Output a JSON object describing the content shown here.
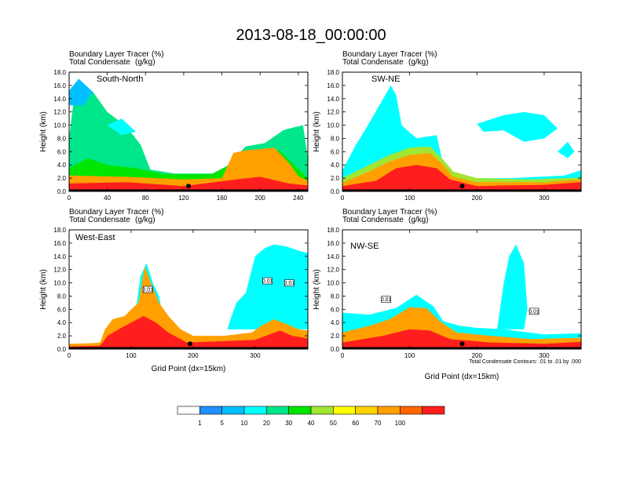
{
  "figure": {
    "title": "2013-08-18_00:00:00",
    "footnote": "Total Condensate Contours: .01 to .01 by .000"
  },
  "colorbar": {
    "colors": [
      "#ffffff",
      "#1e90ff",
      "#00bfff",
      "#00ffff",
      "#00e68a",
      "#00e600",
      "#a0e632",
      "#ffff00",
      "#ffd200",
      "#ffa000",
      "#ff6400",
      "#ff1e1e"
    ],
    "labels": [
      "1",
      "5",
      "10",
      "20",
      "30",
      "40",
      "50",
      "60",
      "70",
      "100"
    ]
  },
  "chart_data": [
    {
      "type": "filled-contour",
      "panel_label": "South-North",
      "title1": "Boundary Layer Tracer",
      "unit1": "(%)",
      "title2": "Total Condensate",
      "unit2": "(g/kg)",
      "ylabel": "Height (km)",
      "xlabel": "",
      "ylim": [
        0,
        18
      ],
      "yticks": [
        "0.0",
        "2.0",
        "4.0",
        "6.0",
        "8.0",
        "10.0",
        "12.0",
        "14.0",
        "16.0",
        "18.0"
      ],
      "xlim": [
        0,
        250
      ],
      "xticks": [
        "0",
        "40",
        "80",
        "120",
        "160",
        "200",
        "240"
      ],
      "xtick_values": [
        0,
        40,
        80,
        120,
        160,
        200,
        240
      ],
      "contour_labels": []
    },
    {
      "type": "filled-contour",
      "panel_label": "SW-NE",
      "title1": "Boundary Layer Tracer",
      "unit1": "(%)",
      "title2": "Total Condensate",
      "unit2": "(g/kg)",
      "ylabel": "Height (km)",
      "xlabel": "",
      "ylim": [
        0,
        18
      ],
      "yticks": [
        "0.0",
        "2.0",
        "4.0",
        "6.0",
        "8.0",
        "10.0",
        "12.0",
        "14.0",
        "16.0",
        "18.0"
      ],
      "xlim": [
        0,
        355
      ],
      "xticks": [
        "0",
        "100",
        "200",
        "300"
      ],
      "xtick_values": [
        0,
        100,
        200,
        300
      ],
      "contour_labels": []
    },
    {
      "type": "filled-contour",
      "panel_label": "West-East",
      "title1": "Boundary Layer Tracer",
      "unit1": "(%)",
      "title2": "Total Condensate",
      "unit2": "(g/kg)",
      "ylabel": "Height (km)",
      "xlabel": "Grid Point (dx=15km)",
      "ylim": [
        0,
        18
      ],
      "yticks": [
        "0.0",
        "2.0",
        "4.0",
        "6.0",
        "8.0",
        "10.0",
        "12.0",
        "14.0",
        "16.0",
        "18.0"
      ],
      "xlim": [
        0,
        385
      ],
      "xticks": [
        "0",
        "100",
        "200",
        "300"
      ],
      "xtick_values": [
        0,
        100,
        200,
        300
      ],
      "contour_labels": [
        {
          "text": "0.01",
          "x": 127,
          "y": 9.0
        },
        {
          "text": "0.01",
          "x": 320,
          "y": 10.3
        },
        {
          "text": "0.01",
          "x": 355,
          "y": 10.0
        }
      ]
    },
    {
      "type": "filled-contour",
      "panel_label": "NW-SE",
      "title1": "Boundary Layer Tracer",
      "unit1": "(%)",
      "title2": "Total Condensate",
      "unit2": "(g/kg)",
      "ylabel": "Height (km)",
      "xlabel": "Grid Point (dx=15km)",
      "ylim": [
        0,
        18
      ],
      "yticks": [
        "0.0",
        "2.0",
        "4.0",
        "6.0",
        "8.0",
        "10.0",
        "12.0",
        "14.0",
        "16.0",
        "18.0"
      ],
      "xlim": [
        0,
        355
      ],
      "xticks": [
        "0",
        "100",
        "200",
        "300"
      ],
      "xtick_values": [
        0,
        100,
        200,
        300
      ],
      "contour_labels": [
        {
          "text": "0.01",
          "x": 65,
          "y": 7.5
        },
        {
          "text": "0.01",
          "x": 285,
          "y": 5.7
        }
      ]
    }
  ]
}
